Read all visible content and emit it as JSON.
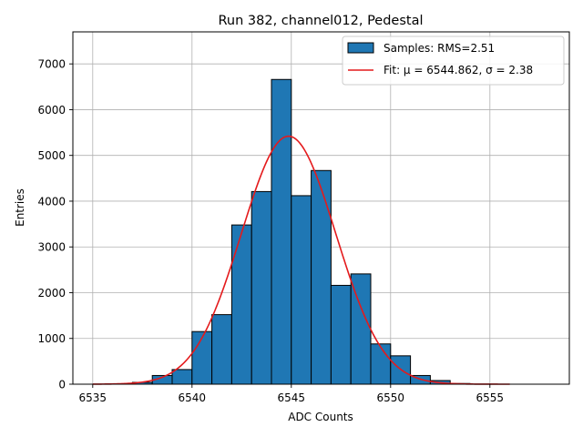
{
  "chart_data": {
    "type": "bar",
    "title": "Run 382, channel012, Pedestal",
    "xlabel": "ADC Counts",
    "ylabel": "Entries",
    "xlim": [
      6534,
      6559
    ],
    "ylim": [
      0,
      7700
    ],
    "xticks": [
      6535,
      6540,
      6545,
      6550,
      6555
    ],
    "yticks": [
      0,
      1000,
      2000,
      3000,
      4000,
      5000,
      6000,
      7000
    ],
    "grid": true,
    "legend_position": "top-right",
    "bins": [
      {
        "x": 6537,
        "value": 40
      },
      {
        "x": 6538,
        "value": 190
      },
      {
        "x": 6539,
        "value": 320
      },
      {
        "x": 6540,
        "value": 1150
      },
      {
        "x": 6541,
        "value": 1520
      },
      {
        "x": 6542,
        "value": 3480
      },
      {
        "x": 6543,
        "value": 4210
      },
      {
        "x": 6544,
        "value": 6660
      },
      {
        "x": 6545,
        "value": 4120
      },
      {
        "x": 6546,
        "value": 4670
      },
      {
        "x": 6547,
        "value": 2160
      },
      {
        "x": 6548,
        "value": 2410
      },
      {
        "x": 6549,
        "value": 880
      },
      {
        "x": 6550,
        "value": 620
      },
      {
        "x": 6551,
        "value": 190
      },
      {
        "x": 6552,
        "value": 80
      },
      {
        "x": 6553,
        "value": 15
      }
    ],
    "bin_width": 1,
    "fit": {
      "type": "gaussian",
      "mu": 6544.862,
      "sigma": 2.38,
      "amplitude": 5420,
      "x_range": [
        6535,
        6556
      ]
    },
    "series": [
      {
        "name": "Samples: RMS=2.51",
        "kind": "histogram",
        "color": "#1f77b4"
      },
      {
        "name": "Fit: μ = 6544.862, σ = 2.38",
        "kind": "line",
        "color": "#e41a1c"
      }
    ]
  }
}
